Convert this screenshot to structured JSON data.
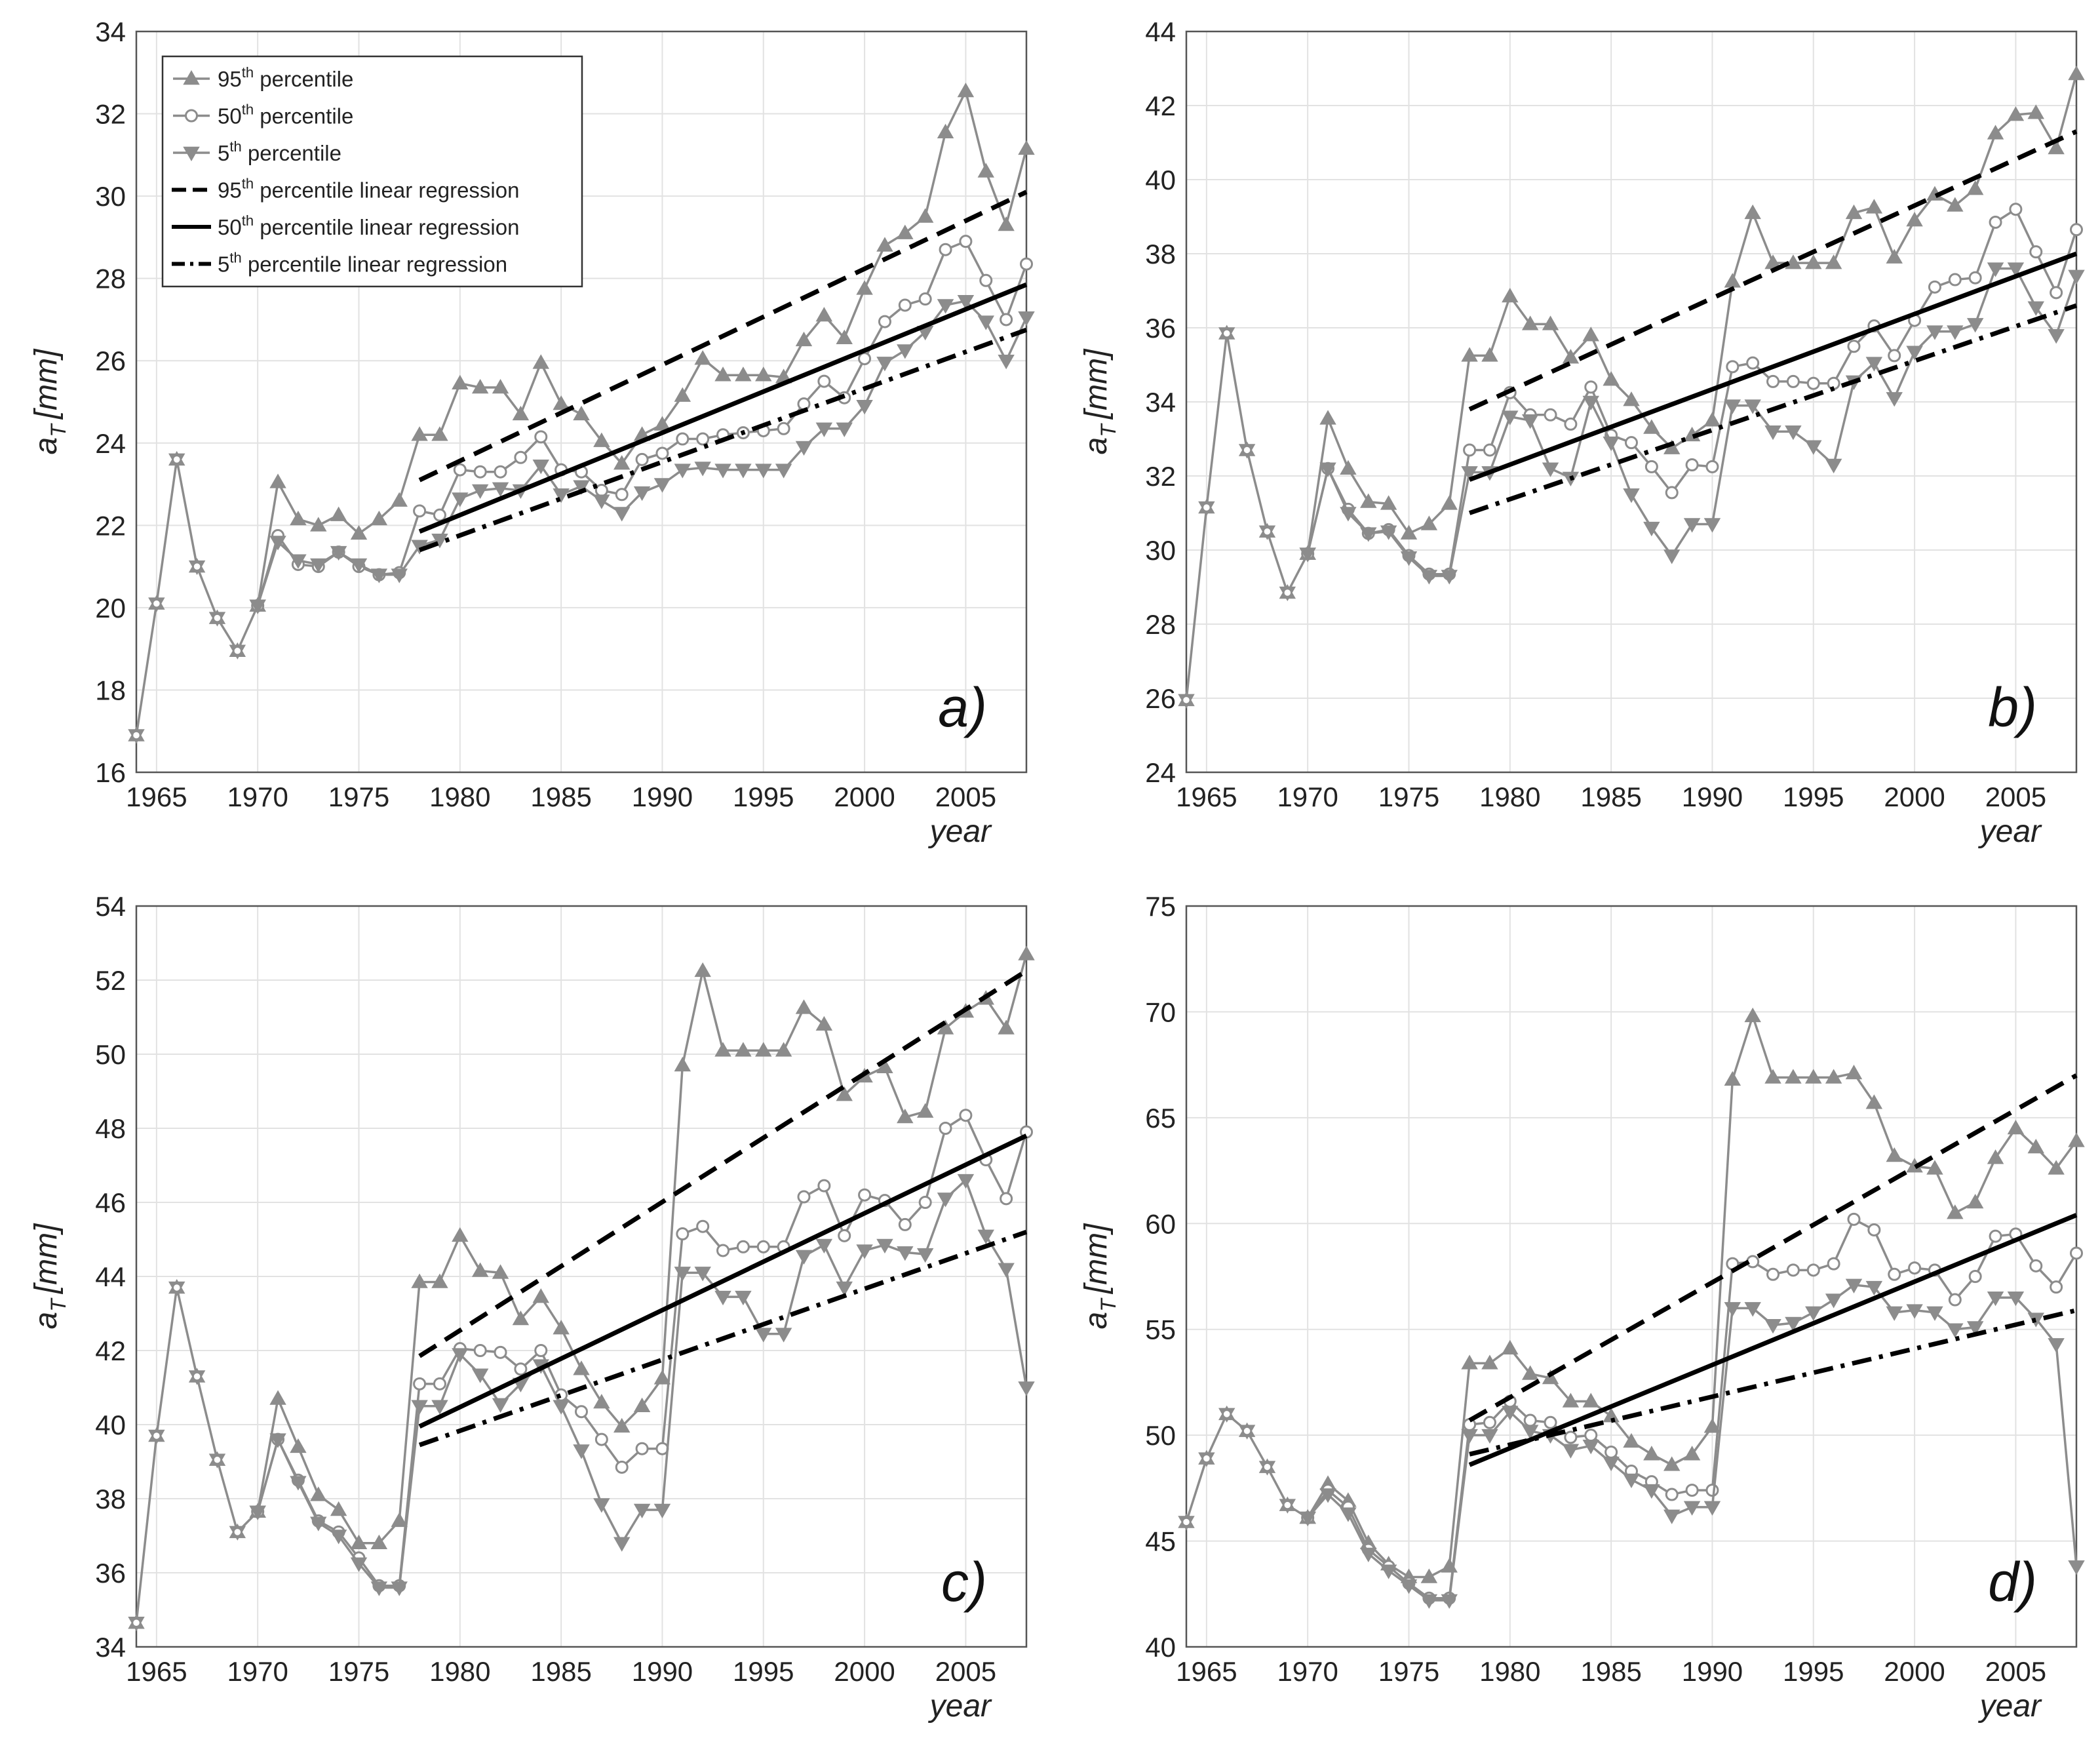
{
  "legend": {
    "entries": [
      {
        "key": "p95",
        "ord": "95",
        "sup": "th",
        "rest": " percentile",
        "kind": "marker",
        "marker": "tri-up"
      },
      {
        "key": "p50",
        "ord": "50",
        "sup": "th",
        "rest": " percentile",
        "kind": "marker",
        "marker": "circle"
      },
      {
        "key": "p5",
        "ord": "5",
        "sup": "th",
        "rest": " percentile",
        "kind": "marker",
        "marker": "tri-down"
      },
      {
        "key": "r95",
        "ord": "95",
        "sup": "th",
        "rest": " percentile linear regression",
        "kind": "line",
        "dash": "dash"
      },
      {
        "key": "r50",
        "ord": "50",
        "sup": "th",
        "rest": " percentile linear regression",
        "kind": "line",
        "dash": "solid"
      },
      {
        "key": "r5",
        "ord": "5",
        "sup": "th",
        "rest": " percentile linear regression",
        "kind": "line",
        "dash": "dashdot"
      }
    ]
  },
  "colors": {
    "series": "#8c8c8c",
    "regression": "#000000",
    "grid": "#e2e2e2",
    "axis": "#555555"
  },
  "chart_data": [
    {
      "type": "line",
      "panel": "a)",
      "xlabel": "year",
      "ylabel": "a",
      "ylabel_sub": "T",
      "ylabel_unit": "[mm]",
      "xlim": [
        1964,
        2008
      ],
      "ylim": [
        16,
        34
      ],
      "xticks": [
        1965,
        1970,
        1975,
        1980,
        1985,
        1990,
        1995,
        2000,
        2005
      ],
      "yticks": [
        16,
        18,
        20,
        22,
        24,
        26,
        28,
        30,
        32,
        34
      ],
      "common_x": [
        1964,
        1965,
        1966,
        1967,
        1968,
        1969,
        1970
      ],
      "common_y": [
        16.9,
        20.1,
        23.6,
        21.0,
        19.75,
        18.95,
        20.05
      ],
      "x": [
        1970,
        1971,
        1972,
        1973,
        1974,
        1975,
        1976,
        1977,
        1978,
        1979,
        1980,
        1981,
        1982,
        1983,
        1984,
        1985,
        1986,
        1987,
        1988,
        1989,
        1990,
        1991,
        1992,
        1993,
        1994,
        1995,
        1996,
        1997,
        1998,
        1999,
        2000,
        2001,
        2002,
        2003,
        2004,
        2005,
        2006,
        2007,
        2008
      ],
      "series": [
        {
          "name": "95th percentile",
          "marker": "tri-up",
          "values": [
            20.05,
            23.05,
            22.15,
            22.0,
            22.25,
            21.8,
            22.15,
            22.6,
            24.2,
            24.2,
            25.45,
            25.35,
            25.35,
            24.7,
            25.95,
            24.95,
            24.7,
            24.05,
            23.5,
            24.2,
            24.45,
            25.15,
            26.05,
            25.65,
            25.65,
            25.65,
            25.6,
            26.5,
            27.1,
            26.55,
            27.75,
            28.8,
            29.1,
            29.5,
            31.55,
            32.55,
            30.6,
            29.3,
            31.15
          ]
        },
        {
          "name": "50th percentile",
          "marker": "circle",
          "values": [
            20.05,
            21.75,
            21.05,
            21.0,
            21.35,
            21.0,
            20.8,
            20.85,
            22.35,
            22.25,
            23.35,
            23.3,
            23.3,
            23.65,
            24.15,
            23.35,
            23.3,
            22.85,
            22.75,
            23.6,
            23.75,
            24.1,
            24.1,
            24.2,
            24.25,
            24.3,
            24.35,
            24.95,
            25.5,
            25.1,
            26.05,
            26.95,
            27.35,
            27.5,
            28.7,
            28.9,
            27.95,
            27.0,
            28.35
          ]
        },
        {
          "name": "5th percentile",
          "marker": "tri-down",
          "values": [
            20.05,
            21.6,
            21.15,
            21.05,
            21.35,
            21.05,
            20.8,
            20.8,
            21.5,
            21.65,
            22.65,
            22.85,
            22.9,
            22.85,
            23.45,
            22.75,
            22.95,
            22.6,
            22.3,
            22.8,
            23.0,
            23.35,
            23.4,
            23.35,
            23.35,
            23.35,
            23.35,
            23.9,
            24.35,
            24.35,
            24.9,
            25.95,
            26.25,
            26.7,
            27.35,
            27.45,
            26.95,
            26.0,
            27.05
          ]
        }
      ],
      "regression": [
        {
          "name": "95th percentile linear regression",
          "style": "dash",
          "x": [
            1978,
            2008
          ],
          "y": [
            23.1,
            30.1
          ]
        },
        {
          "name": "50th percentile linear regression",
          "style": "solid",
          "x": [
            1978,
            2008
          ],
          "y": [
            21.85,
            27.85
          ]
        },
        {
          "name": "5th percentile linear regression",
          "style": "dashdot",
          "x": [
            1978,
            2008
          ],
          "y": [
            21.4,
            26.75
          ]
        }
      ]
    },
    {
      "type": "line",
      "panel": "b)",
      "xlabel": "year",
      "ylabel": "a",
      "ylabel_sub": "T",
      "ylabel_unit": "[mm]",
      "xlim": [
        1964,
        2008
      ],
      "ylim": [
        24,
        44
      ],
      "xticks": [
        1965,
        1970,
        1975,
        1980,
        1985,
        1990,
        1995,
        2000,
        2005
      ],
      "yticks": [
        24,
        26,
        28,
        30,
        32,
        34,
        36,
        38,
        40,
        42,
        44
      ],
      "common_x": [
        1964,
        1965,
        1966,
        1967,
        1968,
        1969,
        1970
      ],
      "common_y": [
        25.95,
        31.15,
        35.85,
        32.7,
        30.5,
        28.85,
        29.9
      ],
      "x": [
        1970,
        1971,
        1972,
        1973,
        1974,
        1975,
        1976,
        1977,
        1978,
        1979,
        1980,
        1981,
        1982,
        1983,
        1984,
        1985,
        1986,
        1987,
        1988,
        1989,
        1990,
        1991,
        1992,
        1993,
        1994,
        1995,
        1996,
        1997,
        1998,
        1999,
        2000,
        2001,
        2002,
        2003,
        2004,
        2005,
        2006,
        2007,
        2008
      ],
      "series": [
        {
          "name": "95th percentile",
          "marker": "tri-up",
          "values": [
            29.9,
            33.55,
            32.2,
            31.3,
            31.25,
            30.45,
            30.7,
            31.25,
            35.25,
            35.25,
            36.85,
            36.1,
            36.1,
            35.2,
            35.8,
            34.6,
            34.05,
            33.3,
            32.75,
            33.1,
            33.5,
            37.25,
            39.1,
            37.75,
            37.75,
            37.75,
            37.75,
            39.1,
            39.25,
            37.9,
            38.9,
            39.6,
            39.3,
            39.75,
            41.25,
            41.75,
            41.8,
            40.85,
            42.85
          ]
        },
        {
          "name": "50th percentile",
          "marker": "circle",
          "values": [
            29.9,
            32.2,
            31.1,
            30.45,
            30.55,
            29.85,
            29.35,
            29.35,
            32.7,
            32.7,
            34.25,
            33.65,
            33.65,
            33.4,
            34.4,
            33.1,
            32.9,
            32.25,
            31.55,
            32.3,
            32.25,
            34.95,
            35.05,
            34.55,
            34.55,
            34.5,
            34.5,
            35.5,
            36.05,
            35.25,
            36.2,
            37.1,
            37.3,
            37.35,
            38.85,
            39.2,
            38.05,
            36.95,
            38.65
          ]
        },
        {
          "name": "5th percentile",
          "marker": "tri-down",
          "values": [
            29.9,
            32.2,
            31.0,
            30.45,
            30.5,
            29.8,
            29.3,
            29.3,
            32.1,
            32.1,
            33.6,
            33.5,
            32.2,
            31.95,
            34.0,
            32.9,
            31.5,
            30.6,
            29.85,
            30.7,
            30.7,
            33.9,
            33.9,
            33.2,
            33.2,
            32.8,
            32.3,
            34.55,
            35.05,
            34.1,
            35.35,
            35.9,
            35.9,
            36.1,
            37.6,
            37.6,
            36.55,
            35.8,
            37.4
          ]
        }
      ],
      "regression": [
        {
          "name": "95th percentile linear regression",
          "style": "dash",
          "x": [
            1978,
            2008
          ],
          "y": [
            33.8,
            41.3
          ]
        },
        {
          "name": "50th percentile linear regression",
          "style": "solid",
          "x": [
            1978,
            2008
          ],
          "y": [
            31.9,
            38.0
          ]
        },
        {
          "name": "5th percentile linear regression",
          "style": "dashdot",
          "x": [
            1978,
            2008
          ],
          "y": [
            31.0,
            36.6
          ]
        }
      ]
    },
    {
      "type": "line",
      "panel": "c)",
      "xlabel": "year",
      "ylabel": "a",
      "ylabel_sub": "T",
      "ylabel_unit": "[mm]",
      "xlim": [
        1964,
        2008
      ],
      "ylim": [
        34,
        54
      ],
      "xticks": [
        1965,
        1970,
        1975,
        1980,
        1985,
        1990,
        1995,
        2000,
        2005
      ],
      "yticks": [
        34,
        36,
        38,
        40,
        42,
        44,
        46,
        48,
        50,
        52,
        54
      ],
      "common_x": [
        1964,
        1965,
        1966,
        1967,
        1968,
        1969,
        1970
      ],
      "common_y": [
        34.65,
        39.7,
        43.7,
        41.3,
        39.05,
        37.1,
        37.65
      ],
      "x": [
        1970,
        1971,
        1972,
        1973,
        1974,
        1975,
        1976,
        1977,
        1978,
        1979,
        1980,
        1981,
        1982,
        1983,
        1984,
        1985,
        1986,
        1987,
        1988,
        1989,
        1990,
        1991,
        1992,
        1993,
        1994,
        1995,
        1996,
        1997,
        1998,
        1999,
        2000,
        2001,
        2002,
        2003,
        2004,
        2005,
        2006,
        2007,
        2008
      ],
      "series": [
        {
          "name": "95th percentile",
          "marker": "tri-up",
          "values": [
            37.65,
            40.7,
            39.4,
            38.1,
            37.7,
            36.8,
            36.8,
            37.4,
            43.85,
            43.85,
            45.1,
            44.15,
            44.1,
            42.85,
            43.45,
            42.6,
            41.5,
            40.6,
            39.95,
            40.5,
            41.25,
            49.7,
            52.25,
            50.1,
            50.1,
            50.1,
            50.1,
            51.25,
            50.8,
            48.9,
            49.4,
            49.65,
            48.3,
            48.45,
            50.7,
            51.15,
            51.5,
            50.7,
            52.7
          ]
        },
        {
          "name": "50th percentile",
          "marker": "circle",
          "values": [
            37.65,
            39.6,
            38.5,
            37.4,
            37.1,
            36.4,
            35.65,
            35.65,
            41.1,
            41.1,
            42.05,
            42.0,
            41.95,
            41.5,
            42.0,
            40.8,
            40.35,
            39.6,
            38.85,
            39.35,
            39.35,
            45.15,
            45.35,
            44.7,
            44.8,
            44.8,
            44.8,
            46.15,
            46.45,
            45.1,
            46.2,
            46.05,
            45.4,
            46.0,
            48.0,
            48.35,
            47.15,
            46.1,
            47.9
          ]
        },
        {
          "name": "5th percentile",
          "marker": "tri-down",
          "values": [
            37.65,
            39.6,
            38.45,
            37.35,
            37.0,
            36.25,
            35.6,
            35.6,
            40.5,
            40.5,
            41.9,
            41.35,
            40.55,
            41.1,
            41.6,
            40.5,
            39.3,
            37.85,
            36.8,
            37.7,
            37.7,
            44.1,
            44.1,
            43.45,
            43.45,
            42.45,
            42.45,
            44.55,
            44.85,
            43.7,
            44.7,
            44.85,
            44.65,
            44.6,
            46.1,
            46.6,
            45.1,
            44.2,
            41.0
          ]
        }
      ],
      "regression": [
        {
          "name": "95th percentile linear regression",
          "style": "dash",
          "x": [
            1978,
            2008
          ],
          "y": [
            41.85,
            52.25
          ]
        },
        {
          "name": "50th percentile linear regression",
          "style": "solid",
          "x": [
            1978,
            2008
          ],
          "y": [
            39.95,
            47.8
          ]
        },
        {
          "name": "5th percentile linear regression",
          "style": "dashdot",
          "x": [
            1978,
            2008
          ],
          "y": [
            39.45,
            45.2
          ]
        }
      ]
    },
    {
      "type": "line",
      "panel": "d)",
      "xlabel": "year",
      "ylabel": "a",
      "ylabel_sub": "T",
      "ylabel_unit": "[mm]",
      "xlim": [
        1964,
        2008
      ],
      "ylim": [
        40,
        75
      ],
      "xticks": [
        1965,
        1970,
        1975,
        1980,
        1985,
        1990,
        1995,
        2000,
        2005
      ],
      "yticks": [
        40,
        45,
        50,
        55,
        60,
        65,
        70,
        75
      ],
      "common_x": [
        1964,
        1965,
        1966,
        1967,
        1968,
        1969,
        1970
      ],
      "common_y": [
        45.9,
        48.9,
        51.0,
        50.2,
        48.5,
        46.7,
        46.1
      ],
      "x": [
        1970,
        1971,
        1972,
        1973,
        1974,
        1975,
        1976,
        1977,
        1978,
        1979,
        1980,
        1981,
        1982,
        1983,
        1984,
        1985,
        1986,
        1987,
        1988,
        1989,
        1990,
        1991,
        1992,
        1993,
        1994,
        1995,
        1996,
        1997,
        1998,
        1999,
        2000,
        2001,
        2002,
        2003,
        2004,
        2005,
        2006,
        2007,
        2008
      ],
      "series": [
        {
          "name": "95th percentile",
          "marker": "tri-up",
          "values": [
            46.1,
            47.7,
            46.9,
            44.9,
            43.9,
            43.3,
            43.3,
            43.8,
            53.4,
            53.4,
            54.1,
            52.9,
            52.7,
            51.6,
            51.6,
            50.9,
            49.7,
            49.1,
            48.6,
            49.1,
            50.4,
            66.8,
            69.8,
            66.9,
            66.9,
            66.9,
            66.9,
            67.1,
            65.7,
            63.2,
            62.7,
            62.6,
            60.5,
            61.0,
            63.1,
            64.5,
            63.6,
            62.6,
            63.9
          ]
        },
        {
          "name": "50th percentile",
          "marker": "circle",
          "values": [
            46.1,
            47.4,
            46.6,
            44.6,
            43.8,
            43.0,
            42.3,
            42.3,
            50.5,
            50.6,
            51.6,
            50.7,
            50.6,
            49.9,
            50.0,
            49.2,
            48.3,
            47.8,
            47.2,
            47.4,
            47.4,
            58.1,
            58.2,
            57.6,
            57.8,
            57.8,
            58.1,
            60.2,
            59.7,
            57.6,
            57.9,
            57.8,
            56.4,
            57.5,
            59.4,
            59.5,
            58.0,
            57.0,
            58.6
          ]
        },
        {
          "name": "5th percentile",
          "marker": "tri-down",
          "values": [
            46.1,
            47.2,
            46.3,
            44.4,
            43.6,
            42.9,
            42.2,
            42.2,
            50.0,
            50.0,
            51.1,
            50.2,
            50.0,
            49.3,
            49.5,
            48.7,
            47.9,
            47.4,
            46.2,
            46.6,
            46.6,
            56.0,
            56.0,
            55.2,
            55.3,
            55.8,
            56.4,
            57.1,
            57.0,
            55.8,
            55.9,
            55.8,
            55.0,
            55.1,
            56.5,
            56.5,
            55.5,
            54.3,
            43.8
          ]
        }
      ],
      "regression": [
        {
          "name": "95th percentile linear regression",
          "style": "dash",
          "x": [
            1978,
            2008
          ],
          "y": [
            50.7,
            67.0
          ]
        },
        {
          "name": "50th percentile linear regression",
          "style": "solid",
          "x": [
            1978,
            2008
          ],
          "y": [
            48.6,
            60.4
          ]
        },
        {
          "name": "5th percentile linear regression",
          "style": "dashdot",
          "x": [
            1978,
            2008
          ],
          "y": [
            49.1,
            55.9
          ]
        }
      ]
    }
  ]
}
